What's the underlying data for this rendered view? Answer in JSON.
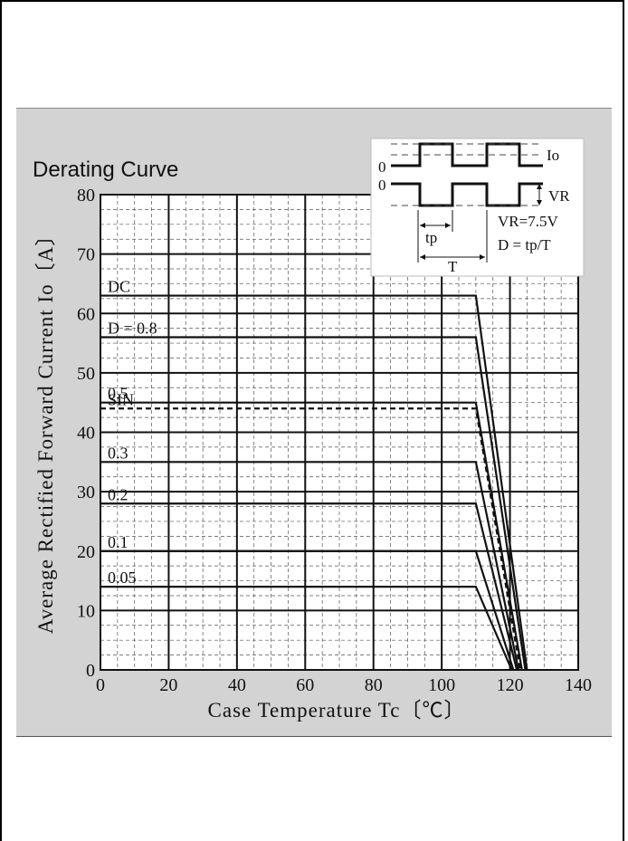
{
  "chart_data": {
    "type": "line",
    "title": "Derating Curve",
    "xlabel": "Case Temperature  Tc〔℃〕",
    "ylabel": "Average Rectified Forward Current  Io〔A〕",
    "xlim": [
      0,
      140
    ],
    "ylim": [
      0,
      80
    ],
    "x_ticks": [
      "0",
      "20",
      "40",
      "60",
      "80",
      "100",
      "120",
      "140"
    ],
    "y_ticks": [
      "0",
      "10",
      "20",
      "30",
      "40",
      "50",
      "60",
      "70",
      "80"
    ],
    "grid": true,
    "series": [
      {
        "name": "DC",
        "x": [
          0,
          110,
          125
        ],
        "y": [
          63,
          63,
          0
        ]
      },
      {
        "name": "D = 0.8",
        "x": [
          0,
          110,
          124.5
        ],
        "y": [
          56,
          56,
          0
        ]
      },
      {
        "name": "0.5",
        "x": [
          0,
          110,
          123.5
        ],
        "y": [
          45,
          45,
          0
        ]
      },
      {
        "name": "SIN",
        "x": [
          0,
          110,
          123
        ],
        "y": [
          44,
          44,
          0
        ],
        "dashed": true
      },
      {
        "name": "0.3",
        "x": [
          0,
          110,
          122.5
        ],
        "y": [
          35,
          35,
          0
        ]
      },
      {
        "name": "0.2",
        "x": [
          0,
          110,
          122
        ],
        "y": [
          28,
          28,
          0
        ]
      },
      {
        "name": "0.1",
        "x": [
          0,
          110,
          121
        ],
        "y": [
          20,
          20,
          0
        ]
      },
      {
        "name": "0.05",
        "x": [
          0,
          110,
          120.5
        ],
        "y": [
          14,
          14,
          0
        ]
      }
    ],
    "inset": {
      "io_label": "Io",
      "vr_label": "VR",
      "zero1": "0",
      "zero2": "0",
      "tp_label": "tp",
      "t_label": "T",
      "vr_value": "VR=7.5V",
      "d_formula": "D = tp/T"
    }
  }
}
